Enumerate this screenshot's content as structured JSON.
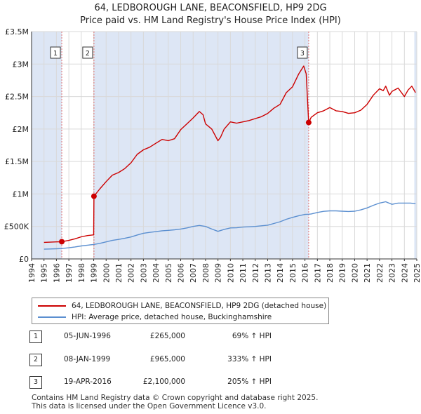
{
  "title": "64, LEDBOROUGH LANE, BEACONSFIELD, HP9 2DG",
  "subtitle": "Price paid vs. HM Land Registry's House Price Index (HPI)",
  "colors": {
    "property": "#cc0000",
    "hpi": "#5b8fd0",
    "shade": "#dde6f5",
    "marker_line": "#e07070"
  },
  "chart_data": {
    "type": "line",
    "title": "64, LEDBOROUGH LANE, BEACONSFIELD, HP9 2DG",
    "subtitle": "Price paid vs. HM Land Registry's House Price Index (HPI)",
    "xlim": [
      1994,
      2025
    ],
    "ylim": [
      0,
      3500000
    ],
    "xticks": [
      "1994",
      "1995",
      "1996",
      "1997",
      "1998",
      "1999",
      "2000",
      "2001",
      "2002",
      "2003",
      "2004",
      "2005",
      "2006",
      "2007",
      "2008",
      "2009",
      "2010",
      "2011",
      "2012",
      "2013",
      "2014",
      "2015",
      "2016",
      "2017",
      "2018",
      "2019",
      "2020",
      "2021",
      "2022",
      "2023",
      "2024",
      "2025"
    ],
    "yticks": [
      {
        "value": 0,
        "label": "£0"
      },
      {
        "value": 500000,
        "label": "£500K"
      },
      {
        "value": 1000000,
        "label": "£1M"
      },
      {
        "value": 1500000,
        "label": "£1.5M"
      },
      {
        "value": 2000000,
        "label": "£2M"
      },
      {
        "value": 2500000,
        "label": "£2.5M"
      },
      {
        "value": 3000000,
        "label": "£3M"
      },
      {
        "value": 3500000,
        "label": "£3.5M"
      }
    ],
    "shaded_ranges": [
      [
        1994,
        1996.43
      ],
      [
        1999.02,
        2016.3
      ],
      [
        2024.8,
        2025
      ]
    ],
    "series": [
      {
        "name": "64, LEDBOROUGH LANE, BEACONSFIELD, HP9 2DG (detached house)",
        "color": "#cc0000",
        "x": [
          1995.0,
          1995.5,
          1996.0,
          1996.43,
          1997.0,
          1997.5,
          1998.0,
          1998.5,
          1999.0,
          1999.02,
          1999.5,
          2000.0,
          2000.5,
          2001.0,
          2001.5,
          2002.0,
          2002.5,
          2003.0,
          2003.5,
          2004.0,
          2004.5,
          2005.0,
          2005.5,
          2006.0,
          2006.5,
          2007.0,
          2007.5,
          2007.8,
          2008.0,
          2008.5,
          2009.0,
          2009.2,
          2009.5,
          2010.0,
          2010.5,
          2011.0,
          2011.5,
          2012.0,
          2012.5,
          2013.0,
          2013.5,
          2014.0,
          2014.5,
          2015.0,
          2015.5,
          2015.9,
          2016.1,
          2016.3,
          2016.5,
          2017.0,
          2017.5,
          2018.0,
          2018.5,
          2019.0,
          2019.5,
          2020.0,
          2020.5,
          2021.0,
          2021.5,
          2022.0,
          2022.3,
          2022.5,
          2022.8,
          2023.0,
          2023.5,
          2024.0,
          2024.3,
          2024.6,
          2024.9
        ],
        "values": [
          255000,
          258000,
          262000,
          265000,
          285000,
          310000,
          340000,
          360000,
          370000,
          965000,
          1080000,
          1190000,
          1290000,
          1330000,
          1390000,
          1480000,
          1610000,
          1680000,
          1720000,
          1780000,
          1840000,
          1820000,
          1850000,
          1990000,
          2080000,
          2170000,
          2270000,
          2220000,
          2080000,
          2000000,
          1820000,
          1870000,
          2000000,
          2110000,
          2090000,
          2110000,
          2130000,
          2160000,
          2190000,
          2240000,
          2320000,
          2380000,
          2560000,
          2650000,
          2850000,
          2970000,
          2850000,
          2100000,
          2180000,
          2250000,
          2280000,
          2330000,
          2280000,
          2270000,
          2240000,
          2250000,
          2290000,
          2380000,
          2520000,
          2620000,
          2590000,
          2660000,
          2520000,
          2580000,
          2630000,
          2500000,
          2600000,
          2660000,
          2560000
        ]
      },
      {
        "name": "HPI: Average price, detached house, Buckinghamshire",
        "color": "#5b8fd0",
        "x": [
          1995.0,
          1995.5,
          1996.0,
          1996.43,
          1997.0,
          1997.5,
          1998.0,
          1998.5,
          1999.0,
          1999.5,
          2000.0,
          2000.5,
          2001.0,
          2001.5,
          2002.0,
          2002.5,
          2003.0,
          2003.5,
          2004.0,
          2004.5,
          2005.0,
          2005.5,
          2006.0,
          2006.5,
          2007.0,
          2007.5,
          2008.0,
          2008.5,
          2009.0,
          2009.5,
          2010.0,
          2010.5,
          2011.0,
          2011.5,
          2012.0,
          2012.5,
          2013.0,
          2013.5,
          2014.0,
          2014.5,
          2015.0,
          2015.5,
          2016.0,
          2016.3,
          2016.5,
          2017.0,
          2017.5,
          2018.0,
          2018.5,
          2019.0,
          2019.5,
          2020.0,
          2020.5,
          2021.0,
          2021.5,
          2022.0,
          2022.5,
          2023.0,
          2023.5,
          2024.0,
          2024.5,
          2024.9
        ],
        "values": [
          150000,
          153000,
          157000,
          160000,
          172000,
          185000,
          200000,
          212000,
          222000,
          240000,
          262000,
          285000,
          300000,
          318000,
          338000,
          368000,
          395000,
          408000,
          420000,
          433000,
          440000,
          448000,
          460000,
          478000,
          500000,
          515000,
          500000,
          460000,
          425000,
          455000,
          478000,
          480000,
          490000,
          495000,
          500000,
          510000,
          520000,
          545000,
          572000,
          610000,
          640000,
          665000,
          685000,
          688000,
          692000,
          715000,
          732000,
          740000,
          740000,
          735000,
          730000,
          735000,
          755000,
          785000,
          825000,
          860000,
          880000,
          840000,
          860000,
          860000,
          860000,
          850000
        ]
      }
    ],
    "sales": [
      {
        "id": "1",
        "date": "05-JUN-1996",
        "year": 1996.43,
        "price": 265000,
        "price_label": "£265,000",
        "hpi": "69% ↑ HPI"
      },
      {
        "id": "2",
        "date": "08-JAN-1999",
        "year": 1999.02,
        "price": 965000,
        "price_label": "£965,000",
        "hpi": "333% ↑ HPI"
      },
      {
        "id": "3",
        "date": "19-APR-2016",
        "year": 2016.3,
        "price": 2100000,
        "price_label": "£2,100,000",
        "hpi": "205% ↑ HPI"
      }
    ],
    "legend": [
      "64, LEDBOROUGH LANE, BEACONSFIELD, HP9 2DG (detached house)",
      "HPI: Average price, detached house, Buckinghamshire"
    ]
  },
  "footer": {
    "line1": "Contains HM Land Registry data © Crown copyright and database right 2025.",
    "line2": "This data is licensed under the Open Government Licence v3.0."
  }
}
